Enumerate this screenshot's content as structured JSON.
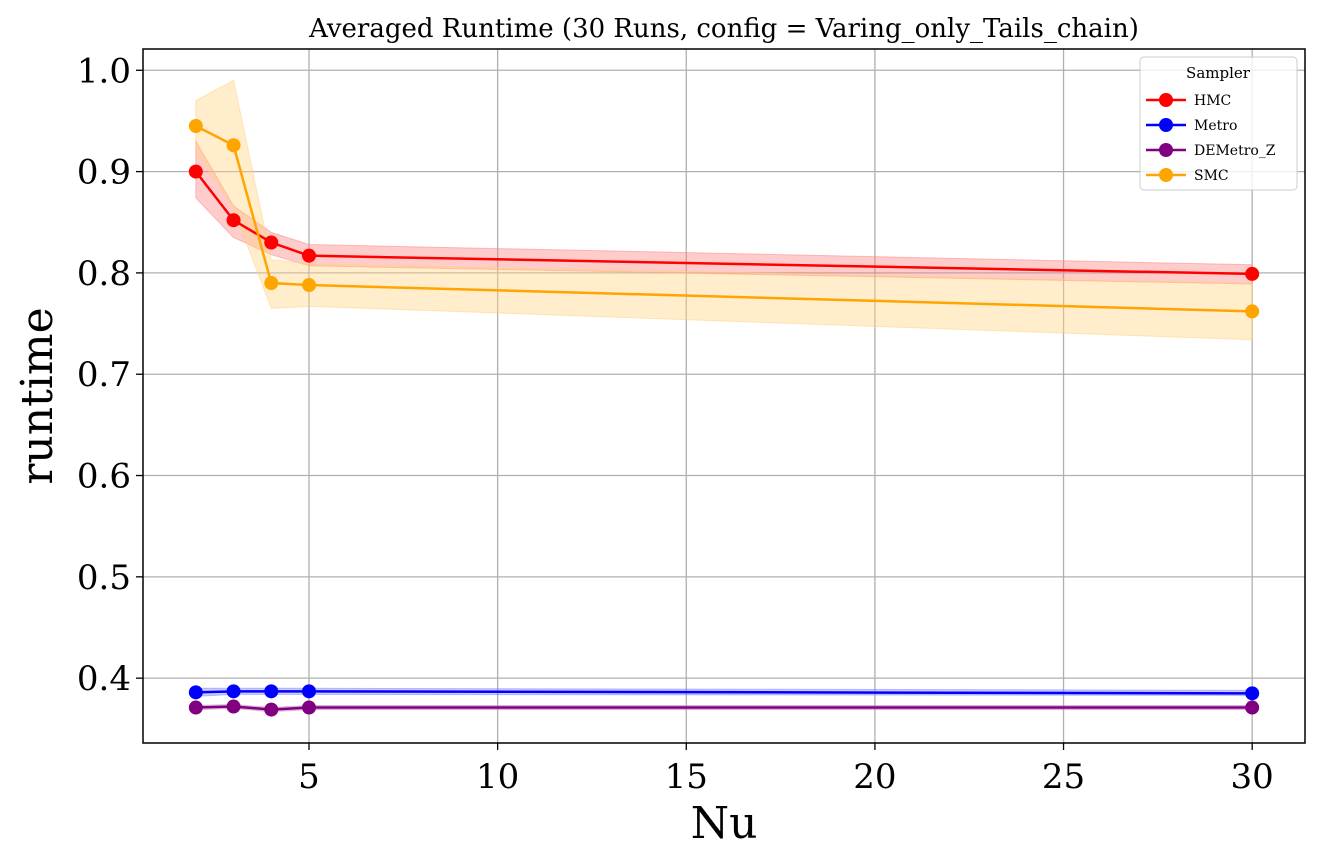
{
  "chart_data": {
    "type": "line",
    "title": "Averaged Runtime (30 Runs, config = Varing_only_Tails_chain)",
    "xlabel": "Nu",
    "ylabel": "runtime",
    "xlim": [
      0.6,
      31.4
    ],
    "ylim": [
      0.336,
      1.021
    ],
    "xticks": [
      5,
      10,
      15,
      20,
      25,
      30
    ],
    "yticks": [
      0.4,
      0.5,
      0.6,
      0.7,
      0.8,
      0.9,
      1.0
    ],
    "grid": true,
    "legend": {
      "title": "Sampler",
      "placement": "top-right"
    },
    "x": [
      2,
      3,
      4,
      5,
      30
    ],
    "series": [
      {
        "name": "HMC",
        "color": "#ff0000",
        "values": [
          0.9,
          0.852,
          0.83,
          0.817,
          0.799
        ],
        "band_low": [
          0.874,
          0.835,
          0.818,
          0.807,
          0.789
        ],
        "band_high": [
          0.93,
          0.866,
          0.84,
          0.828,
          0.808
        ],
        "band_color": "#ff7f7f"
      },
      {
        "name": "Metro",
        "color": "#0000ff",
        "values": [
          0.386,
          0.387,
          0.387,
          0.387,
          0.385
        ],
        "band_low": [
          0.382,
          0.384,
          0.384,
          0.384,
          0.383
        ],
        "band_high": [
          0.39,
          0.39,
          0.39,
          0.39,
          0.388
        ],
        "band_color": "#7f7fff"
      },
      {
        "name": "DEMetro_Z",
        "color": "#800080",
        "values": [
          0.371,
          0.372,
          0.369,
          0.371,
          0.371
        ],
        "band_low": [
          0.369,
          0.37,
          0.367,
          0.369,
          0.369
        ],
        "band_high": [
          0.373,
          0.374,
          0.371,
          0.373,
          0.373
        ],
        "band_color": "#bf7fbf"
      },
      {
        "name": "SMC",
        "color": "#ffa500",
        "values": [
          0.945,
          0.926,
          0.79,
          0.788,
          0.762
        ],
        "band_low": [
          0.92,
          0.863,
          0.765,
          0.767,
          0.734
        ],
        "band_high": [
          0.97,
          0.99,
          0.813,
          0.809,
          0.79
        ],
        "band_color": "#ffd27f"
      }
    ]
  }
}
